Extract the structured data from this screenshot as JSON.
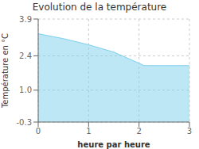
{
  "chart_data": {
    "type": "area",
    "title": "Evolution de la température",
    "x_label": "heure par heure",
    "y_label": "Température en °C",
    "x": [
      0,
      0.5,
      1.0,
      1.5,
      2.0,
      2.1,
      2.5,
      3.0
    ],
    "values": [
      3.3,
      3.1,
      2.85,
      2.55,
      2.1,
      2.0,
      2.0,
      2.0
    ],
    "color": "#7dcfed",
    "xlim": [
      0,
      3
    ],
    "xticks": [
      0,
      1,
      2,
      3
    ],
    "ylim": [
      -0.3,
      3.9
    ],
    "yticks": [
      -0.3,
      {
        "value": 1.0,
        "label": "1.0"
      },
      2.4,
      3.9
    ],
    "grid": true
  }
}
